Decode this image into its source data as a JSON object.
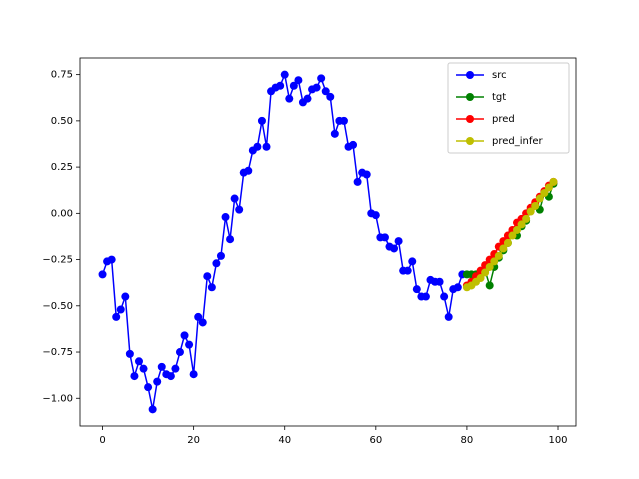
{
  "chart_data": {
    "type": "line",
    "xlim": [
      -4.95,
      103.95
    ],
    "ylim": [
      -1.15,
      0.84
    ],
    "xticks": [
      0,
      20,
      40,
      60,
      80,
      100
    ],
    "yticks": [
      {
        "value": -1,
        "label": "−1.00"
      },
      {
        "value": -0.75,
        "label": "−0.75"
      },
      {
        "value": -0.5,
        "label": "−0.50"
      },
      {
        "value": -0.25,
        "label": "−0.25"
      },
      {
        "value": 0,
        "label": "0.00"
      },
      0.25,
      {
        "value": 0.5,
        "label": "0.50"
      },
      0.75
    ],
    "legend": "upper right",
    "series": [
      {
        "name": "src",
        "color": "#0000ff",
        "x": [
          0,
          1,
          2,
          3,
          4,
          5,
          6,
          7,
          8,
          9,
          10,
          11,
          12,
          13,
          14,
          15,
          16,
          17,
          18,
          19,
          20,
          21,
          22,
          23,
          24,
          25,
          26,
          27,
          28,
          29,
          30,
          31,
          32,
          33,
          34,
          35,
          36,
          37,
          38,
          39,
          40,
          41,
          42,
          43,
          44,
          45,
          46,
          47,
          48,
          49,
          50,
          51,
          52,
          53,
          54,
          55,
          56,
          57,
          58,
          59,
          60,
          61,
          62,
          63,
          64,
          65,
          66,
          67,
          68,
          69,
          70,
          71,
          72,
          73,
          74,
          75,
          76,
          77,
          78,
          79
        ],
        "values": [
          -0.33,
          -0.26,
          -0.25,
          -0.56,
          -0.52,
          -0.45,
          -0.76,
          -0.88,
          -0.8,
          -0.84,
          -0.94,
          -1.06,
          -0.91,
          -0.83,
          -0.87,
          -0.88,
          -0.84,
          -0.75,
          -0.66,
          -0.71,
          -0.87,
          -0.56,
          -0.59,
          -0.34,
          -0.4,
          -0.27,
          -0.23,
          -0.02,
          -0.14,
          0.08,
          0.02,
          0.22,
          0.23,
          0.34,
          0.36,
          0.5,
          0.36,
          0.66,
          0.68,
          0.69,
          0.75,
          0.62,
          0.69,
          0.72,
          0.6,
          0.62,
          0.67,
          0.68,
          0.73,
          0.66,
          0.63,
          0.43,
          0.5,
          0.5,
          0.36,
          0.37,
          0.17,
          0.22,
          0.21,
          0.0,
          -0.01,
          -0.13,
          -0.13,
          -0.18,
          -0.19,
          -0.15,
          -0.31,
          -0.31,
          -0.26,
          -0.41,
          -0.45,
          -0.45,
          -0.36,
          -0.37,
          -0.37,
          -0.45,
          -0.56,
          -0.41,
          -0.4,
          -0.33
        ]
      },
      {
        "name": "tgt",
        "color": "#008000",
        "x": [
          80,
          81,
          82,
          83,
          84,
          85,
          86,
          87,
          88,
          89,
          90,
          91,
          92,
          93,
          94,
          95,
          96,
          97,
          98,
          99
        ],
        "values": [
          -0.33,
          -0.33,
          -0.33,
          -0.33,
          -0.31,
          -0.39,
          -0.29,
          -0.24,
          -0.2,
          -0.16,
          -0.1,
          -0.12,
          -0.07,
          -0.04,
          0.02,
          0.05,
          0.02,
          0.11,
          0.09,
          0.16
        ]
      },
      {
        "name": "pred",
        "color": "#ff0000",
        "x": [
          80,
          81,
          82,
          83,
          84,
          85,
          86,
          87,
          88,
          89,
          90,
          91,
          92,
          93,
          94,
          95,
          96,
          97,
          98,
          99
        ],
        "values": [
          -0.39,
          -0.37,
          -0.34,
          -0.31,
          -0.28,
          -0.25,
          -0.22,
          -0.18,
          -0.15,
          -0.12,
          -0.09,
          -0.05,
          -0.03,
          0.0,
          0.03,
          0.06,
          0.09,
          0.12,
          0.15,
          0.17
        ]
      },
      {
        "name": "pred_infer",
        "color": "#bfbf00",
        "x": [
          80,
          81,
          82,
          83,
          84,
          85,
          86,
          87,
          88,
          89,
          90,
          91,
          92,
          93,
          94,
          95,
          96,
          97,
          98,
          99
        ],
        "values": [
          -0.4,
          -0.39,
          -0.37,
          -0.35,
          -0.32,
          -0.29,
          -0.26,
          -0.23,
          -0.19,
          -0.16,
          -0.12,
          -0.09,
          -0.06,
          -0.03,
          0.01,
          0.04,
          0.08,
          0.11,
          0.14,
          0.17
        ]
      }
    ]
  }
}
